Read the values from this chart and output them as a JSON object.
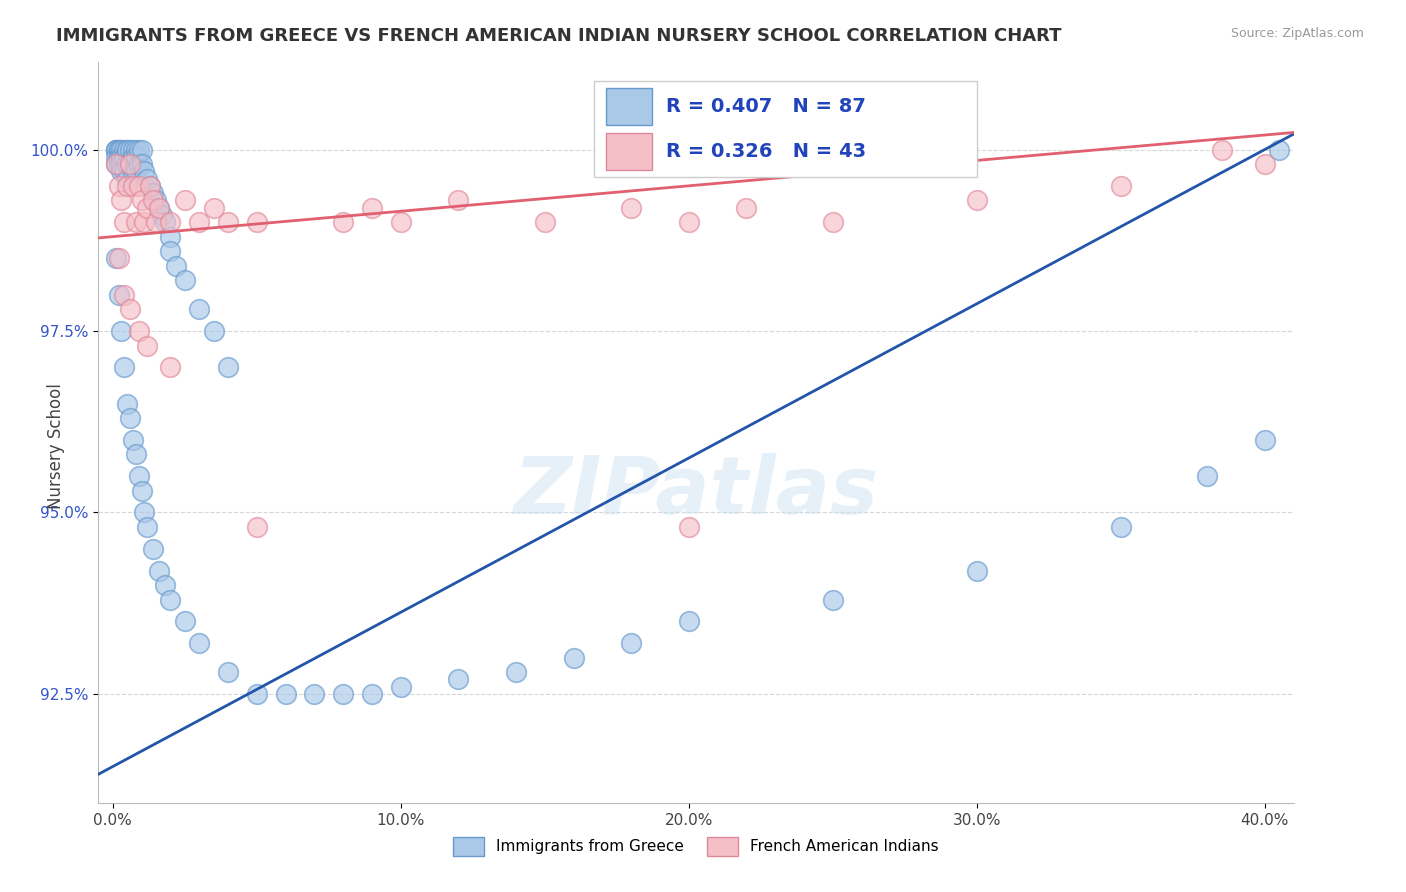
{
  "title": "IMMIGRANTS FROM GREECE VS FRENCH AMERICAN INDIAN NURSERY SCHOOL CORRELATION CHART",
  "source": "Source: ZipAtlas.com",
  "xlabel_vals": [
    0.0,
    10.0,
    20.0,
    30.0,
    40.0
  ],
  "ylabel_vals": [
    92.5,
    95.0,
    97.5,
    100.0
  ],
  "xlim": [
    -0.5,
    41.0
  ],
  "ylim": [
    91.0,
    101.2
  ],
  "ylabel": "Nursery School",
  "series1_label": "Immigrants from Greece",
  "series1_color": "#aac8e8",
  "series1_edge": "#6699cc",
  "series1_line_color": "#2255aa",
  "series1_R": 0.407,
  "series1_N": 87,
  "series2_label": "French American Indians",
  "series2_color": "#f5bfc8",
  "series2_edge": "#e08898",
  "series2_line_color": "#e06070",
  "series2_R": 0.326,
  "series2_N": 43,
  "watermark": "ZIPatlas",
  "background_color": "#ffffff",
  "grid_color": "#cccccc",
  "scatter1_x": [
    0.1,
    0.1,
    0.1,
    0.1,
    0.1,
    0.2,
    0.2,
    0.2,
    0.2,
    0.3,
    0.3,
    0.3,
    0.3,
    0.4,
    0.4,
    0.4,
    0.5,
    0.5,
    0.5,
    0.5,
    0.6,
    0.6,
    0.7,
    0.7,
    0.7,
    0.8,
    0.8,
    0.8,
    0.9,
    0.9,
    1.0,
    1.0,
    1.1,
    1.2,
    1.3,
    1.4,
    1.5,
    1.6,
    1.7,
    1.8,
    2.0,
    2.0,
    2.2,
    2.5,
    3.0,
    3.5,
    4.0,
    0.1,
    0.2,
    0.3,
    0.4,
    0.5,
    0.6,
    0.7,
    0.8,
    0.9,
    1.0,
    1.1,
    1.2,
    1.4,
    1.6,
    1.8,
    2.0,
    2.5,
    3.0,
    4.0,
    5.0,
    6.0,
    7.0,
    8.0,
    9.0,
    10.0,
    12.0,
    14.0,
    16.0,
    18.0,
    20.0,
    25.0,
    30.0,
    35.0,
    38.0,
    40.0,
    40.5
  ],
  "scatter1_y": [
    100.0,
    100.0,
    100.0,
    99.9,
    99.8,
    100.0,
    100.0,
    99.9,
    99.8,
    100.0,
    99.9,
    99.8,
    99.7,
    100.0,
    99.9,
    99.7,
    100.0,
    100.0,
    99.8,
    99.6,
    100.0,
    99.8,
    100.0,
    99.9,
    99.7,
    100.0,
    99.9,
    99.7,
    100.0,
    99.8,
    100.0,
    99.8,
    99.7,
    99.6,
    99.5,
    99.4,
    99.3,
    99.2,
    99.1,
    99.0,
    98.8,
    98.6,
    98.4,
    98.2,
    97.8,
    97.5,
    97.0,
    98.5,
    98.0,
    97.5,
    97.0,
    96.5,
    96.3,
    96.0,
    95.8,
    95.5,
    95.3,
    95.0,
    94.8,
    94.5,
    94.2,
    94.0,
    93.8,
    93.5,
    93.2,
    92.8,
    92.5,
    92.5,
    92.5,
    92.5,
    92.5,
    92.6,
    92.7,
    92.8,
    93.0,
    93.2,
    93.5,
    93.8,
    94.2,
    94.8,
    95.5,
    96.0,
    100.0
  ],
  "scatter2_x": [
    0.1,
    0.2,
    0.3,
    0.4,
    0.5,
    0.6,
    0.7,
    0.8,
    0.9,
    1.0,
    1.1,
    1.2,
    1.3,
    1.4,
    1.5,
    1.6,
    2.0,
    2.5,
    3.0,
    3.5,
    4.0,
    5.0,
    8.0,
    9.0,
    10.0,
    12.0,
    15.0,
    18.0,
    20.0,
    22.0,
    25.0,
    30.0,
    35.0,
    38.5,
    40.0,
    0.2,
    0.4,
    0.6,
    0.9,
    1.2,
    2.0,
    5.0,
    20.0
  ],
  "scatter2_y": [
    99.8,
    99.5,
    99.3,
    99.0,
    99.5,
    99.8,
    99.5,
    99.0,
    99.5,
    99.3,
    99.0,
    99.2,
    99.5,
    99.3,
    99.0,
    99.2,
    99.0,
    99.3,
    99.0,
    99.2,
    99.0,
    99.0,
    99.0,
    99.2,
    99.0,
    99.3,
    99.0,
    99.2,
    99.0,
    99.2,
    99.0,
    99.3,
    99.5,
    100.0,
    99.8,
    98.5,
    98.0,
    97.8,
    97.5,
    97.3,
    97.0,
    94.8,
    94.8
  ]
}
